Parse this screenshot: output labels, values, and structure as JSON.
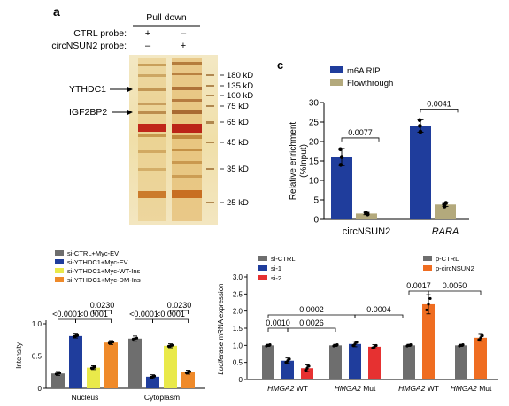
{
  "figure": {
    "panel_a_label": "a",
    "panel_c_label": "c",
    "pulldown_label": "Pull down",
    "probes": [
      {
        "label": "CTRL probe:",
        "lanes": [
          "+",
          "–"
        ]
      },
      {
        "label": "circNSUN2 probe:",
        "lanes": [
          "–",
          "+"
        ]
      }
    ],
    "proteins": [
      "YTHDC1",
      "IGF2BP2"
    ],
    "markers": [
      "180 kD",
      "135 kD",
      "100 kD",
      "75 kD",
      "65 kD",
      "45 kD",
      "35 kD",
      "25 kD"
    ]
  },
  "chart_data": [
    {
      "id": "c",
      "type": "bar",
      "categories": [
        "circNSUN2",
        "RARA"
      ],
      "series": [
        {
          "name": "m6A RIP",
          "color": "#1f3d9c",
          "values": [
            16,
            24
          ],
          "err": [
            2.2,
            1.6
          ],
          "points": [
            [
              14,
              16,
              18
            ],
            [
              22.5,
              24,
              25.5
            ]
          ]
        },
        {
          "name": "Flowthrough",
          "color": "#b3a97c",
          "values": [
            1.5,
            3.8
          ],
          "err": [
            0.3,
            0.5
          ],
          "points": [
            [
              1.3,
              1.5,
              1.7
            ],
            [
              3.3,
              3.8,
              4.2
            ]
          ]
        }
      ],
      "ylabel": "Relative enrichment (%Input)",
      "ylim": [
        0,
        30
      ],
      "yticks": [
        0,
        5,
        10,
        15,
        20,
        25,
        30
      ],
      "pvalues": [
        "0.0077",
        "0.0041"
      ]
    },
    {
      "id": "d",
      "type": "bar",
      "categories": [
        "Nucleus",
        "Cytoplasm"
      ],
      "series": [
        {
          "name": "si-CTRL+Myc-EV",
          "color": "#6e6e6e",
          "values": [
            0.23,
            0.77
          ],
          "err": [
            0.03,
            0.04
          ]
        },
        {
          "name": "si-YTHDC1+Myc-EV",
          "color": "#1f3d9c",
          "values": [
            0.81,
            0.18
          ],
          "err": [
            0.03,
            0.03
          ]
        },
        {
          "name": "si-YTHDC1+Myc-WT-Ins",
          "color": "#e9e94a",
          "values": [
            0.32,
            0.66
          ],
          "err": [
            0.03,
            0.03
          ]
        },
        {
          "name": "si-YTHDC1+Myc-DM-Ins",
          "color": "#ef8a2a",
          "values": [
            0.71,
            0.25
          ],
          "err": [
            0.03,
            0.03
          ]
        }
      ],
      "ylabel": "Intensity",
      "ylim": [
        0,
        1.0
      ],
      "yticks": [
        "0",
        "0.5",
        "1.0"
      ],
      "ytick_values": [
        0,
        0.5,
        1.0
      ],
      "pvalues": [
        "<0.0001",
        "<0.0001",
        "0.0230",
        "<0.0001",
        "<0.0001",
        "0.0230"
      ]
    },
    {
      "id": "e",
      "type": "bar",
      "groups": [
        {
          "x_label": "HMGA2",
          "x_suffix": " WT",
          "values": [
            1.0,
            0.55,
            0.33
          ],
          "err": [
            0.03,
            0.08,
            0.1
          ],
          "colors": [
            "#6e6e6e",
            "#1f3d9c",
            "#e63131"
          ]
        },
        {
          "x_label": "HMGA2",
          "x_suffix": " Mut",
          "values": [
            1.0,
            1.04,
            0.96
          ],
          "err": [
            0.03,
            0.08,
            0.06
          ],
          "colors": [
            "#6e6e6e",
            "#1f3d9c",
            "#e63131"
          ]
        },
        {
          "x_label": "HMGA2",
          "x_suffix": " WT",
          "values": [
            1.0,
            2.2
          ],
          "err": [
            0.03,
            0.28
          ],
          "colors": [
            "#6e6e6e",
            "#ef6d21"
          ]
        },
        {
          "x_label": "HMGA2",
          "x_suffix": " Mut",
          "values": [
            1.0,
            1.22
          ],
          "err": [
            0.03,
            0.1
          ],
          "colors": [
            "#6e6e6e",
            "#ef6d21"
          ]
        }
      ],
      "legend_left": [
        {
          "name": "si-CTRL",
          "color": "#6e6e6e"
        },
        {
          "name": "si-1",
          "color": "#1f3d9c"
        },
        {
          "name": "si-2",
          "color": "#e63131"
        }
      ],
      "legend_right": [
        {
          "name": "p-CTRL",
          "color": "#6e6e6e"
        },
        {
          "name": "p-circNSUN2",
          "color": "#ef6d21"
        }
      ],
      "ylabel_italic": "Luciferase",
      "ylabel_rest": " mRNA expression",
      "ylim": [
        0,
        3.0
      ],
      "yticks": [
        "0",
        "0.5",
        "1.0",
        "1.5",
        "2.0",
        "2.5",
        "3.0"
      ],
      "ytick_values": [
        0,
        0.5,
        1.0,
        1.5,
        2.0,
        2.5,
        3.0
      ],
      "pvalues": [
        "0.0002",
        "0.0004",
        "0.0010",
        "0.0026",
        "0.0017",
        "0.0050"
      ]
    }
  ]
}
